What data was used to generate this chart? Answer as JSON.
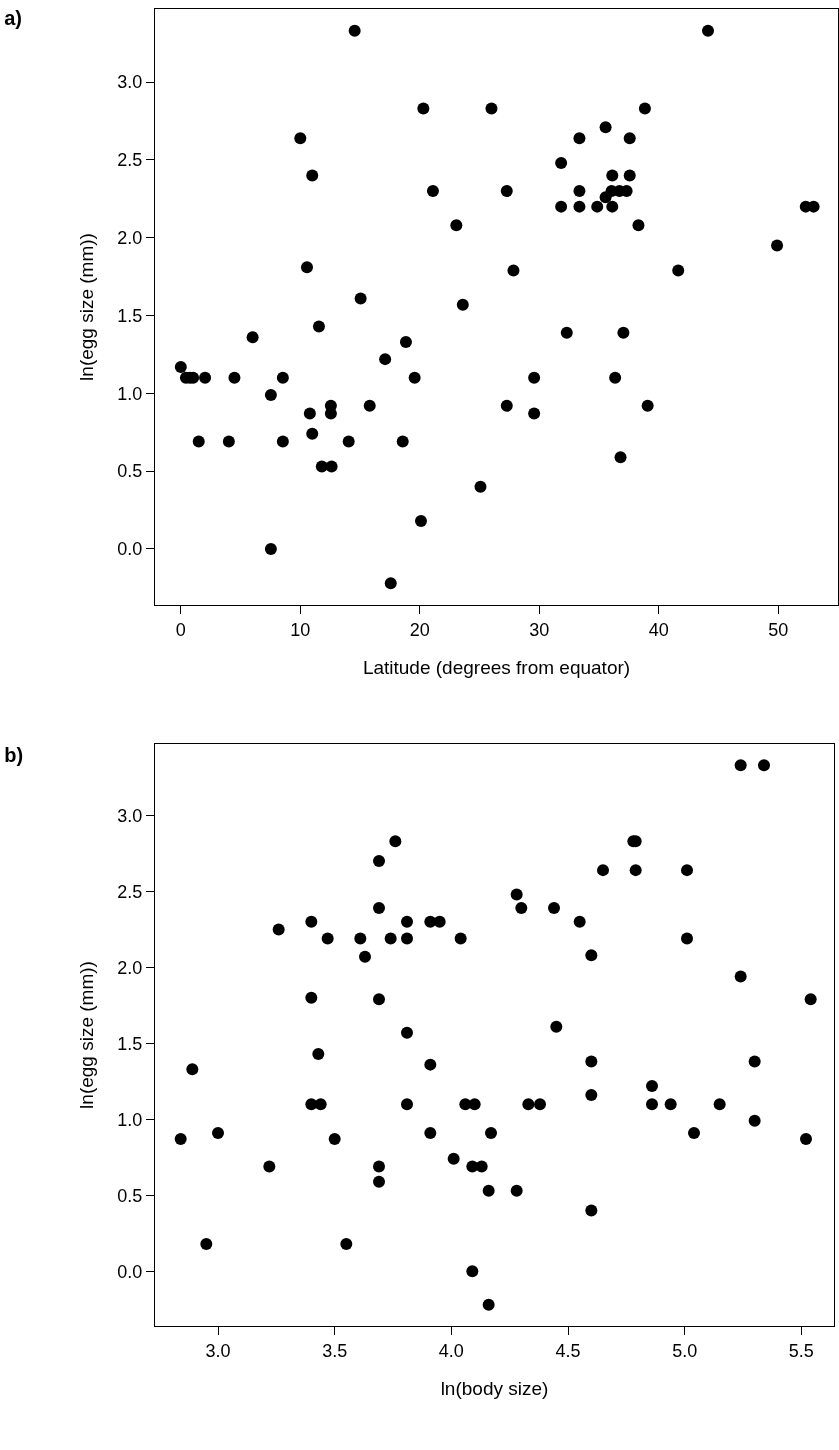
{
  "chart_data": [
    {
      "type": "scatter",
      "title": "a)",
      "xlabel": "Latitude (degrees from equator)",
      "ylabel": "ln(egg size (mm))",
      "marker": "circle",
      "grid": false,
      "xlim": [
        -2.16,
        55.0
      ],
      "xticks": [
        0,
        10,
        20,
        30,
        40,
        50
      ],
      "ylim": [
        -0.36,
        3.47
      ],
      "yticks": [
        {
          "value": 0,
          "label": "0.0"
        },
        0.5,
        {
          "value": 1,
          "label": "1.0"
        },
        1.5,
        {
          "value": 2,
          "label": "2.0"
        },
        2.5,
        {
          "value": 3,
          "label": "3.0"
        }
      ],
      "series": [
        {
          "color": "#000000",
          "x": [
            14.55,
            20.3,
            10.0,
            11.0,
            21.1,
            23.06,
            10.56,
            15.05,
            23.6,
            11.56,
            6.01,
            18.84,
            17.1,
            0,
            0.43,
            0.76,
            1.03,
            2.03,
            4.49,
            8.54,
            19.57,
            7.54,
            10.8,
            12.56,
            12.56,
            15.81,
            11.0,
            1.5,
            4.02,
            8.54,
            14.05,
            18.57,
            11.8,
            12.62,
            25.08,
            20.1,
            7.54,
            17.57,
            44.12,
            26.0,
            38.84,
            35.55,
            33.36,
            37.57,
            31.83,
            36.11,
            37.57,
            27.28,
            33.36,
            36.05,
            36.71,
            37.31,
            35.55,
            31.83,
            33.36,
            34.85,
            36.11,
            38.3,
            52.3,
            52.96,
            49.9,
            27.84,
            41.63,
            32.3,
            37.04,
            29.57,
            36.35,
            27.28,
            29.57,
            39.07,
            36.8
          ],
          "values": [
            3.33,
            2.83,
            2.64,
            2.4,
            2.3,
            2.08,
            1.81,
            1.61,
            1.57,
            1.43,
            1.36,
            1.33,
            1.22,
            1.17,
            1.1,
            1.1,
            1.1,
            1.1,
            1.1,
            1.1,
            1.1,
            0.99,
            0.87,
            0.92,
            0.87,
            0.92,
            0.74,
            0.69,
            0.69,
            0.69,
            0.69,
            0.69,
            0.53,
            0.53,
            0.4,
            0.18,
            0.0,
            -0.22,
            3.33,
            2.83,
            2.83,
            2.71,
            2.64,
            2.64,
            2.48,
            2.4,
            2.4,
            2.3,
            2.3,
            2.3,
            2.3,
            2.3,
            2.26,
            2.2,
            2.2,
            2.2,
            2.2,
            2.08,
            2.2,
            2.2,
            1.95,
            1.79,
            1.79,
            1.39,
            1.39,
            1.1,
            1.1,
            0.92,
            0.87,
            0.92,
            0.59
          ]
        }
      ]
    },
    {
      "type": "scatter",
      "title": "b)",
      "xlabel": "ln(body size)",
      "ylabel": "ln(egg size (mm))",
      "marker": "circle",
      "grid": false,
      "xlim": [
        2.73,
        5.64
      ],
      "xticks": [
        {
          "value": 3,
          "label": "3.0"
        },
        3.5,
        {
          "value": 4,
          "label": "4.0"
        },
        4.5,
        {
          "value": 5,
          "label": "5.0"
        },
        5.5
      ],
      "ylim": [
        -0.36,
        3.47
      ],
      "yticks": [
        {
          "value": 0,
          "label": "0.0"
        },
        0.5,
        {
          "value": 1,
          "label": "1.0"
        },
        1.5,
        {
          "value": 2,
          "label": "2.0"
        },
        2.5,
        {
          "value": 3,
          "label": "3.0"
        }
      ],
      "series": [
        {
          "color": "#000000",
          "x": [
            3.76,
            3.69,
            3.69,
            3.4,
            3.81,
            3.91,
            3.95,
            3.26,
            3.47,
            3.61,
            3.74,
            3.81,
            4.04,
            3.63,
            3.4,
            3.69,
            3.81,
            3.43,
            2.89,
            3.91,
            3.4,
            3.44,
            3.81,
            4.06,
            4.1,
            2.84,
            3.0,
            3.5,
            3.91,
            4.17,
            3.22,
            3.69,
            4.01,
            4.09,
            4.13,
            3.69,
            4.16,
            2.95,
            3.55,
            4.09,
            4.16,
            5.24,
            5.34,
            4.78,
            4.79,
            4.65,
            4.79,
            5.01,
            4.28,
            4.3,
            4.44,
            4.55,
            5.01,
            4.6,
            5.24,
            5.54,
            4.45,
            4.6,
            5.3,
            4.6,
            4.86,
            4.86,
            4.94,
            5.15,
            4.33,
            4.38,
            5.04,
            5.3,
            5.52,
            4.28,
            4.6
          ],
          "values": [
            2.83,
            2.7,
            2.39,
            2.3,
            2.3,
            2.3,
            2.3,
            2.25,
            2.19,
            2.19,
            2.19,
            2.19,
            2.19,
            2.07,
            1.8,
            1.79,
            1.57,
            1.43,
            1.33,
            1.36,
            1.1,
            1.1,
            1.1,
            1.1,
            1.1,
            0.87,
            0.91,
            0.87,
            0.91,
            0.91,
            0.69,
            0.69,
            0.74,
            0.69,
            0.69,
            0.59,
            0.53,
            0.18,
            0.18,
            0.0,
            -0.22,
            3.33,
            3.33,
            2.83,
            2.83,
            2.64,
            2.64,
            2.64,
            2.48,
            2.39,
            2.39,
            2.3,
            2.19,
            2.08,
            1.94,
            1.79,
            1.61,
            1.38,
            1.38,
            1.16,
            1.22,
            1.1,
            1.1,
            1.1,
            1.1,
            1.1,
            0.91,
            0.99,
            0.87,
            0.53,
            0.4
          ]
        }
      ]
    }
  ]
}
